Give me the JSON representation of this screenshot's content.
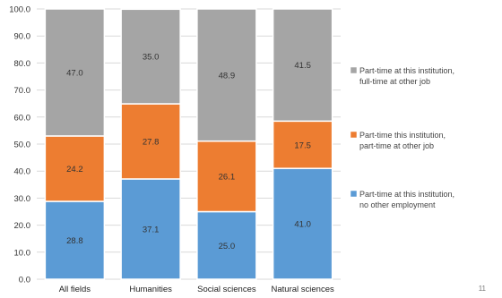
{
  "chart_data": {
    "type": "bar",
    "stacked": true,
    "categories": [
      "All fields",
      "Humanities",
      "Social sciences",
      "Natural sciences"
    ],
    "series": [
      {
        "name": "Part-time at this institution, no other employment",
        "values": [
          28.8,
          37.1,
          25.0,
          41.0
        ],
        "color": "#5B9BD5",
        "labels": [
          "28.8",
          "37.1",
          "25.0",
          "41.0"
        ]
      },
      {
        "name": "Part-time this institution, part-time at other job",
        "values": [
          24.2,
          27.8,
          26.1,
          17.5
        ],
        "color": "#ED7D31",
        "labels": [
          "24.2",
          "27.8",
          "26.1",
          "17.5"
        ]
      },
      {
        "name": "Part-time at this institution, full-time at other job",
        "values": [
          47.0,
          35.0,
          48.9,
          41.5
        ],
        "color": "#A5A5A5",
        "labels": [
          "47.0",
          "35.0",
          "48.9",
          "41.5"
        ]
      }
    ],
    "ylim": [
      0,
      100
    ],
    "yticks": [
      "0.0",
      "10.0",
      "20.0",
      "30.0",
      "40.0",
      "50.0",
      "60.0",
      "70.0",
      "80.0",
      "90.0",
      "100.0"
    ],
    "grid": true,
    "legend_position": "right",
    "legend": [
      {
        "line1": "Part-time at this institution,",
        "line2": "full-time at other job"
      },
      {
        "line1": "Part-time this institution,",
        "line2": "part-time at other job"
      },
      {
        "line1": "Part-time at this institution,",
        "line2": "no other employment"
      }
    ]
  },
  "page_number": "11"
}
